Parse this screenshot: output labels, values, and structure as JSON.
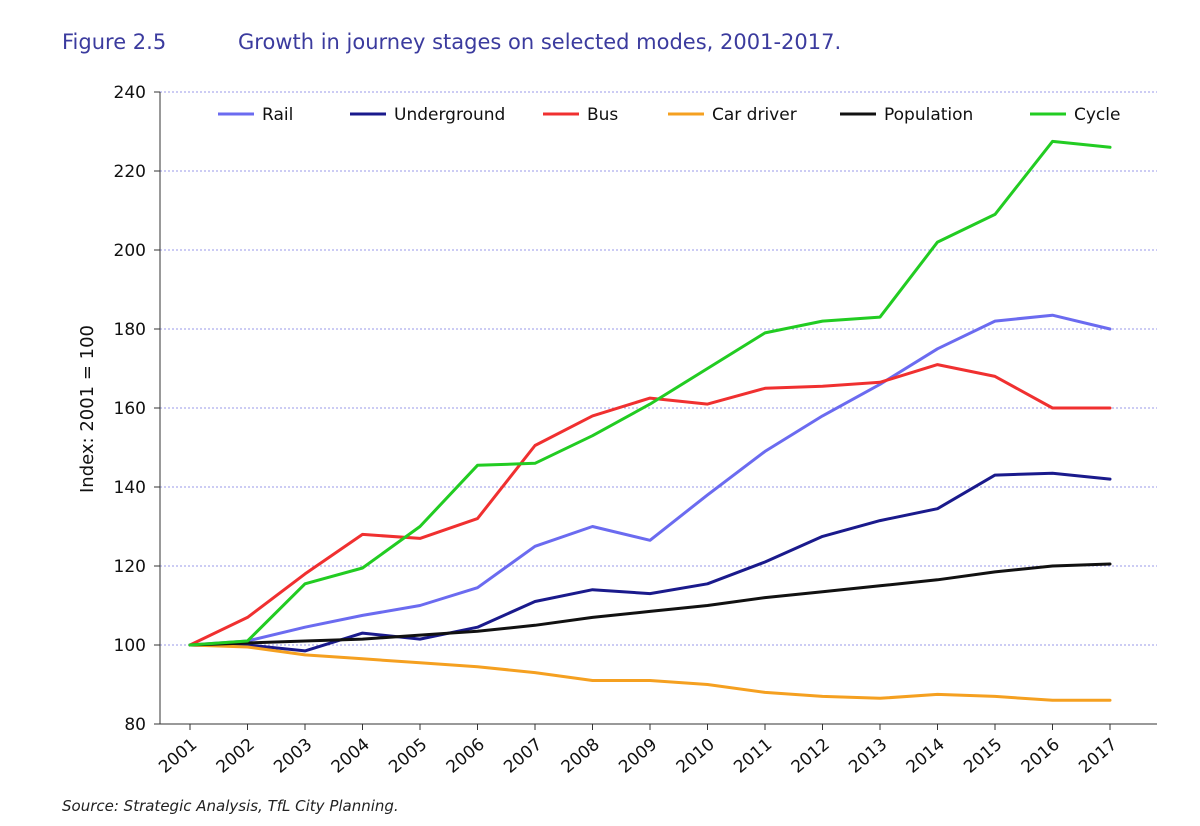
{
  "figure": {
    "label": "Figure 2.5",
    "title": "Growth in journey stages on selected modes, 2001-2017.",
    "source": "Source: Strategic Analysis, TfL City Planning."
  },
  "chart_data": {
    "type": "line",
    "ylabel": "Index: 2001 = 100",
    "xlabel": "",
    "ylim": [
      80,
      240
    ],
    "yticks": [
      80,
      100,
      120,
      140,
      160,
      180,
      200,
      220,
      240
    ],
    "grid": "horizontal dotted",
    "legend_position": "top",
    "categories": [
      "2001",
      "2002",
      "2003",
      "2004",
      "2005",
      "2006",
      "2007",
      "2008",
      "2009",
      "2010",
      "2011",
      "2012",
      "2013",
      "2014",
      "2015",
      "2016",
      "2017"
    ],
    "series": [
      {
        "name": "Rail",
        "color": "#6b6bf0",
        "values": [
          100,
          101,
          104.5,
          107.5,
          110,
          114.5,
          125,
          130,
          126.5,
          138,
          149,
          158,
          166,
          175,
          182,
          183.5,
          180
        ]
      },
      {
        "name": "Underground",
        "color": "#1a1a8c",
        "values": [
          100,
          100,
          98.5,
          103,
          101.5,
          104.5,
          111,
          114,
          113,
          115.5,
          121,
          127.5,
          131.5,
          134.5,
          143,
          143.5,
          142
        ]
      },
      {
        "name": "Bus",
        "color": "#f03030",
        "values": [
          100,
          107,
          118,
          128,
          127,
          132,
          150.5,
          158,
          162.5,
          161,
          165,
          165.5,
          166.5,
          171,
          168,
          160,
          160
        ]
      },
      {
        "name": "Car driver",
        "color": "#f5a020",
        "values": [
          100,
          99.5,
          97.5,
          96.5,
          95.5,
          94.5,
          93,
          91,
          91,
          90,
          88,
          87,
          86.5,
          87.5,
          87,
          86,
          86
        ]
      },
      {
        "name": "Population",
        "color": "#111111",
        "values": [
          100,
          100.5,
          101,
          101.5,
          102.5,
          103.5,
          105,
          107,
          108.5,
          110,
          112,
          113.5,
          115,
          116.5,
          118.5,
          120,
          120.5
        ]
      },
      {
        "name": "Cycle",
        "color": "#22cc22",
        "values": [
          100,
          101,
          115.5,
          119.5,
          130,
          145.5,
          146,
          153,
          161,
          170,
          179,
          182,
          183,
          202,
          209,
          227.5,
          226
        ]
      }
    ]
  }
}
